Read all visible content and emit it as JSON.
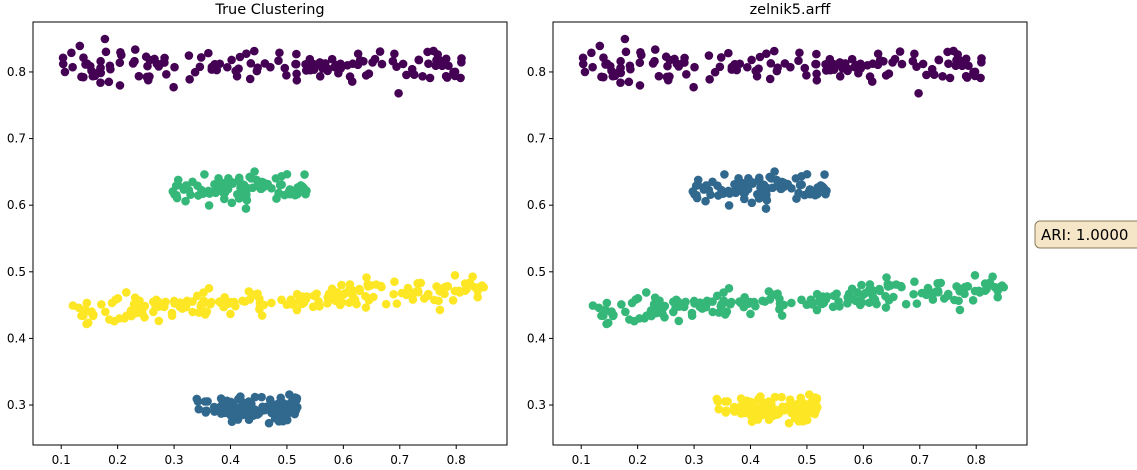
{
  "chart_data": [
    {
      "type": "scatter",
      "title": "True Clustering",
      "xlabel": "",
      "ylabel": "",
      "xlim": [
        0.05,
        0.89
      ],
      "ylim": [
        0.24,
        0.875
      ],
      "xticks": [
        0.1,
        0.2,
        0.3,
        0.4,
        0.5,
        0.6,
        0.7,
        0.8
      ],
      "yticks": [
        0.3,
        0.4,
        0.5,
        0.6,
        0.7,
        0.8
      ],
      "clusters": [
        {
          "color": "#440154",
          "x_range": [
            0.1,
            0.81
          ],
          "y_start": 0.81,
          "y_end": 0.81,
          "jitter": 0.012,
          "count": 150
        },
        {
          "color": "#35b779",
          "x_range": [
            0.295,
            0.535
          ],
          "y_start": 0.625,
          "y_end": 0.625,
          "jitter": 0.01,
          "count": 100
        },
        {
          "color": "#fde725",
          "x_range": [
            0.11,
            0.85
          ],
          "y_start": 0.44,
          "y_end": 0.475,
          "jitter": 0.01,
          "count": 200
        },
        {
          "color": "#31688e",
          "x_range": [
            0.34,
            0.52
          ],
          "y_start": 0.292,
          "y_end": 0.292,
          "jitter": 0.01,
          "count": 100
        }
      ]
    },
    {
      "type": "scatter",
      "title": "zelnik5.arff",
      "xlabel": "",
      "ylabel": "",
      "xlim": [
        0.05,
        0.89
      ],
      "ylim": [
        0.24,
        0.875
      ],
      "xticks": [
        0.1,
        0.2,
        0.3,
        0.4,
        0.5,
        0.6,
        0.7,
        0.8
      ],
      "yticks": [
        0.3,
        0.4,
        0.5,
        0.6,
        0.7,
        0.8
      ],
      "clusters": [
        {
          "color": "#440154",
          "x_range": [
            0.1,
            0.81
          ],
          "y_start": 0.81,
          "y_end": 0.81,
          "jitter": 0.012,
          "count": 150
        },
        {
          "color": "#31688e",
          "x_range": [
            0.295,
            0.535
          ],
          "y_start": 0.625,
          "y_end": 0.625,
          "jitter": 0.01,
          "count": 100
        },
        {
          "color": "#35b779",
          "x_range": [
            0.11,
            0.85
          ],
          "y_start": 0.44,
          "y_end": 0.475,
          "jitter": 0.01,
          "count": 200
        },
        {
          "color": "#fde725",
          "x_range": [
            0.34,
            0.52
          ],
          "y_start": 0.292,
          "y_end": 0.292,
          "jitter": 0.01,
          "count": 100
        }
      ]
    }
  ],
  "annotation": {
    "text": "ARI: 1.0000",
    "fill": "#f5e6c8",
    "border": "#8a7a5a"
  }
}
